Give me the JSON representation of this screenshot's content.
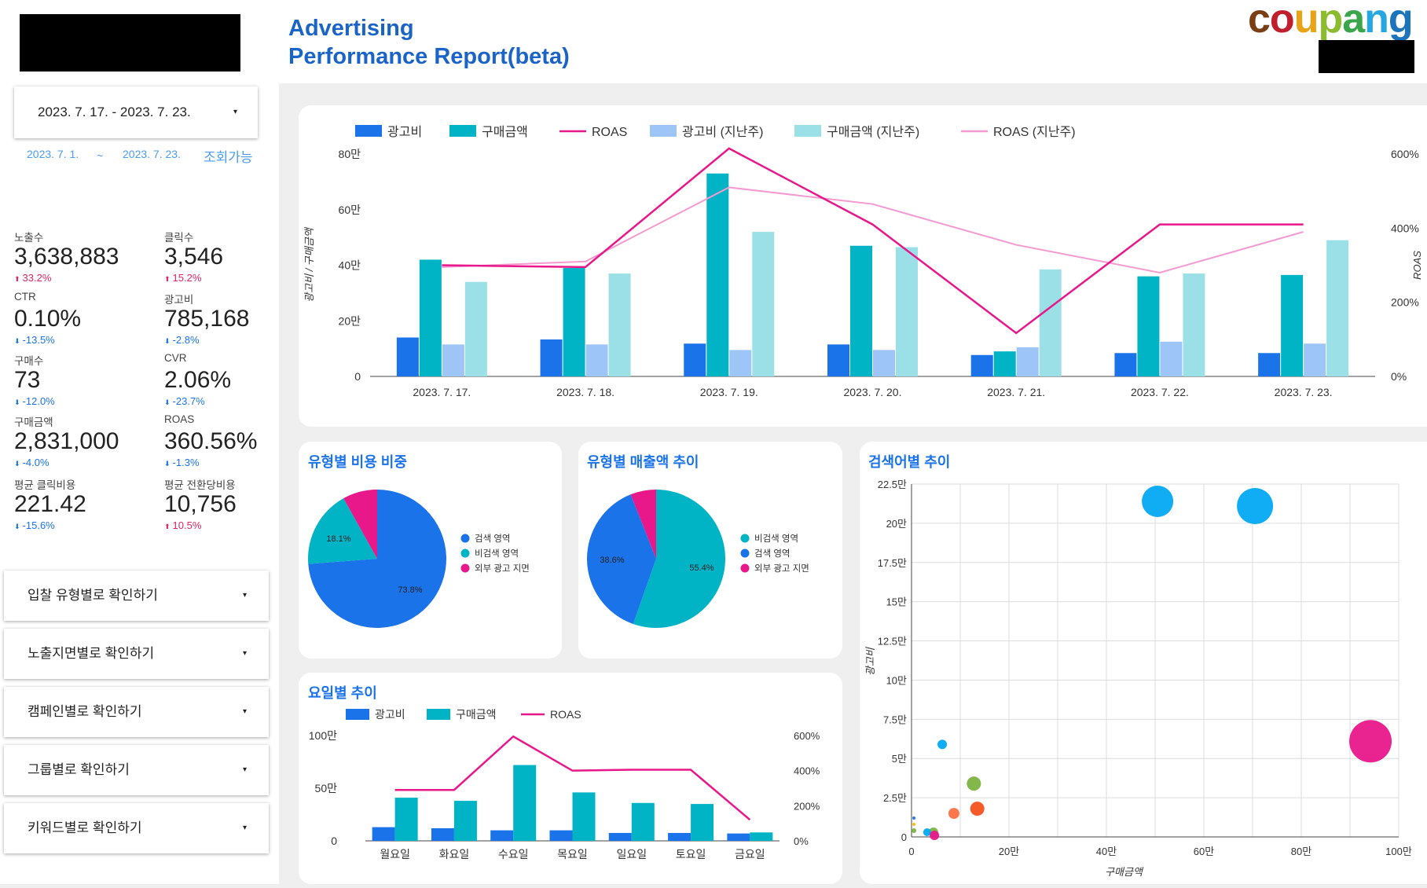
{
  "header": {
    "title_line1": "Advertising",
    "title_line2": "Performance Report(beta)",
    "brand_letters": [
      {
        "ch": "c",
        "color": "#7a3e15"
      },
      {
        "ch": "o",
        "color": "#c0202e"
      },
      {
        "ch": "u",
        "color": "#e8a317"
      },
      {
        "ch": "p",
        "color": "#8dbb2f"
      },
      {
        "ch": "a",
        "color": "#3aa54a"
      },
      {
        "ch": "n",
        "color": "#26a7df"
      },
      {
        "ch": "g",
        "color": "#1c75bc"
      }
    ]
  },
  "sidebar": {
    "date_range": "2023. 7. 17. - 2023. 7. 23.",
    "available_from": "2023. 7. 1.",
    "available_sep": "~",
    "available_to": "2023. 7. 23.",
    "available_label": "조회가능",
    "kpis": [
      {
        "label": "노출수",
        "value": "3,638,883",
        "delta": "33.2%",
        "dir": "up"
      },
      {
        "label": "클릭수",
        "value": "3,546",
        "delta": "15.2%",
        "dir": "up"
      },
      {
        "label": "CTR",
        "value": "0.10%",
        "delta": "-13.5%",
        "dir": "down"
      },
      {
        "label": "광고비",
        "value": "785,168",
        "delta": "-2.8%",
        "dir": "down"
      },
      {
        "label": "구매수",
        "value": "73",
        "delta": "-12.0%",
        "dir": "down"
      },
      {
        "label": "CVR",
        "value": "2.06%",
        "delta": "-23.7%",
        "dir": "down"
      },
      {
        "label": "구매금액",
        "value": "2,831,000",
        "delta": "-4.0%",
        "dir": "down"
      },
      {
        "label": "ROAS",
        "value": "360.56%",
        "delta": "-1.3%",
        "dir": "down"
      },
      {
        "label": "평균 클릭비용",
        "value": "221.42",
        "delta": "-15.6%",
        "dir": "down"
      },
      {
        "label": "평균 전환당비용",
        "value": "10,756",
        "delta": "10.5%",
        "dir": "up"
      }
    ],
    "nav": [
      {
        "label": "입찰 유형별로 확인하기"
      },
      {
        "label": "노출지면별로 확인하기"
      },
      {
        "label": "캠페인별로 확인하기"
      },
      {
        "label": "그룹별로 확인하기"
      },
      {
        "label": "키워드별로 확인하기"
      }
    ]
  },
  "icons": {
    "dropdown": "▾",
    "arrow_up": "⬆",
    "arrow_down": "⬇"
  },
  "colors": {
    "ad_cost": "#1a73e8",
    "purchase": "#00b4c5",
    "roas": "#e8178a",
    "ad_cost_prev": "#9ec5f8",
    "purchase_prev": "#9be0e6",
    "roas_prev": "#f49ad0"
  },
  "chart_data": [
    {
      "type": "bar",
      "id": "daily",
      "title": "",
      "categories": [
        "2023. 7. 17.",
        "2023. 7. 18.",
        "2023. 7. 19.",
        "2023. 7. 20.",
        "2023. 7. 21.",
        "2023. 7. 22.",
        "2023. 7. 23."
      ],
      "series": [
        {
          "name": "광고비",
          "kind": "bar",
          "axis": "left",
          "values": [
            140000,
            133000,
            118000,
            115000,
            77000,
            84000,
            84000
          ]
        },
        {
          "name": "구매금액",
          "kind": "bar",
          "axis": "left",
          "values": [
            420000,
            390000,
            730000,
            470000,
            90000,
            360000,
            365000
          ]
        },
        {
          "name": "ROAS",
          "kind": "line",
          "axis": "right",
          "values": [
            300,
            295,
            615,
            410,
            117,
            410,
            410
          ]
        },
        {
          "name": "광고비 (지난주)",
          "kind": "bar",
          "axis": "left",
          "values": [
            115000,
            115000,
            95000,
            95000,
            105000,
            125000,
            118000
          ]
        },
        {
          "name": "구매금액 (지난주)",
          "kind": "bar",
          "axis": "left",
          "values": [
            340000,
            370000,
            520000,
            465000,
            385000,
            370000,
            490000
          ]
        },
        {
          "name": "ROAS (지난주)",
          "kind": "line",
          "axis": "right",
          "values": [
            295,
            310,
            510,
            465,
            355,
            280,
            390
          ]
        }
      ],
      "ylabel": "광고비 / 구매금액",
      "y2label": "ROAS",
      "ylim": [
        0,
        800000
      ],
      "y2lim": [
        0,
        600
      ],
      "yticks": [
        "0",
        "20만",
        "40만",
        "60만",
        "80만"
      ],
      "y2ticks": [
        "0%",
        "200%",
        "400%",
        "600%"
      ],
      "legend": "top"
    },
    {
      "type": "pie",
      "id": "cost_share",
      "title": "유형별 비용 비중",
      "slices": [
        {
          "name": "검색 영역",
          "value": 73.8,
          "label": "73.8%"
        },
        {
          "name": "비검색 영역",
          "value": 18.1,
          "label": "18.1%"
        },
        {
          "name": "외부 광고 지면",
          "value": 8.1,
          "label": ""
        }
      ],
      "legend": "right"
    },
    {
      "type": "pie",
      "id": "sales_share",
      "title": "유형별 매출액 추이",
      "slices": [
        {
          "name": "비검색 영역",
          "value": 55.4,
          "label": "55.4%"
        },
        {
          "name": "검색 영역",
          "value": 38.6,
          "label": "38.6%"
        },
        {
          "name": "외부 광고 지면",
          "value": 6.0,
          "label": ""
        }
      ],
      "legend": "right"
    },
    {
      "type": "bar",
      "id": "weekday",
      "title": "요일별 추이",
      "categories": [
        "월요일",
        "화요일",
        "수요일",
        "목요일",
        "일요일",
        "토요일",
        "금요일"
      ],
      "series": [
        {
          "name": "광고비",
          "kind": "bar",
          "axis": "left",
          "values": [
            130000,
            120000,
            100000,
            100000,
            75000,
            75000,
            70000
          ]
        },
        {
          "name": "구매금액",
          "kind": "bar",
          "axis": "left",
          "values": [
            410000,
            380000,
            720000,
            460000,
            360000,
            350000,
            80000
          ]
        },
        {
          "name": "ROAS",
          "kind": "line",
          "axis": "right",
          "values": [
            290,
            290,
            595,
            400,
            405,
            405,
            120
          ]
        }
      ],
      "ylim": [
        0,
        1000000
      ],
      "y2lim": [
        0,
        600
      ],
      "yticks": [
        "0",
        "50만",
        "100만"
      ],
      "y2ticks": [
        "0%",
        "200%",
        "400%",
        "600%"
      ],
      "legend": "top"
    },
    {
      "type": "scatter",
      "id": "keywords",
      "title": "검색어별 추이",
      "xlabel": "구매금액",
      "ylabel": "광고비",
      "xlim": [
        0,
        1000000
      ],
      "ylim": [
        0,
        225000
      ],
      "xticks": [
        "0",
        "20만",
        "40만",
        "60만",
        "80만",
        "100만"
      ],
      "yticks": [
        "0",
        "2.5만",
        "5만",
        "7.5만",
        "10만",
        "12.5만",
        "15만",
        "17.5만",
        "20만",
        "22.5만"
      ],
      "points": [
        {
          "x": 505000,
          "y": 214000,
          "r": 20,
          "color": "#03a9f4"
        },
        {
          "x": 705000,
          "y": 211000,
          "r": 23,
          "color": "#03a9f4"
        },
        {
          "x": 942000,
          "y": 61000,
          "r": 27,
          "color": "#e8178a"
        },
        {
          "x": 63000,
          "y": 59000,
          "r": 6,
          "color": "#03a9f4"
        },
        {
          "x": 128000,
          "y": 34000,
          "r": 9,
          "color": "#7cb342"
        },
        {
          "x": 135000,
          "y": 18000,
          "r": 9,
          "color": "#f4511e"
        },
        {
          "x": 87000,
          "y": 15000,
          "r": 7,
          "color": "#ff7043"
        },
        {
          "x": 45000,
          "y": 3000,
          "r": 6,
          "color": "#7cb342"
        },
        {
          "x": 32000,
          "y": 3000,
          "r": 5,
          "color": "#03a9f4"
        },
        {
          "x": 47000,
          "y": 1000,
          "r": 6,
          "color": "#e8178a"
        },
        {
          "x": 5000,
          "y": 12000,
          "r": 2,
          "color": "#1a73e8"
        },
        {
          "x": 5000,
          "y": 8000,
          "r": 2,
          "color": "#fbbc04"
        },
        {
          "x": 5000,
          "y": 4000,
          "r": 3,
          "color": "#7cb342"
        }
      ]
    }
  ]
}
